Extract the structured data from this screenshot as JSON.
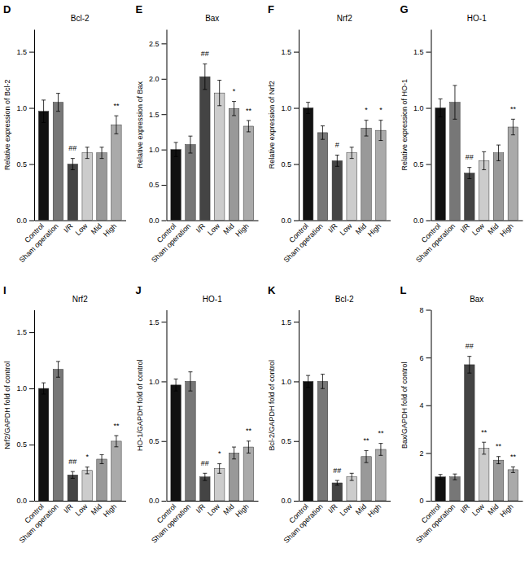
{
  "chart_data": [
    {
      "type": "bar",
      "title": "Bcl-2",
      "y_label": "Relative expression of Bcl-2",
      "categories": [
        "Control",
        "Sham operation",
        "I/R",
        "Low",
        "Mid",
        "High"
      ],
      "values": [
        0.97,
        1.05,
        0.5,
        0.6,
        0.6,
        0.85
      ],
      "errors": [
        0.1,
        0.08,
        0.05,
        0.05,
        0.05,
        0.08
      ],
      "colors": [
        "#111111",
        "#777777",
        "#444444",
        "#cccccc",
        "#999999",
        "#aaaaaa"
      ],
      "ylim": [
        0,
        1.7
      ],
      "yticks": [
        {
          "value": 0.0,
          "label": "0.0"
        },
        0.5,
        {
          "value": 1.0,
          "label": "1.0"
        },
        1.5
      ],
      "grid": false,
      "annotations": [
        {
          "text": "D"
        },
        {
          "text": "##",
          "x": "I/R"
        },
        {
          "text": "**",
          "x": "High"
        }
      ]
    },
    {
      "type": "bar",
      "title": "Bax",
      "y_label": "Relative expression of Bax",
      "categories": [
        "Control",
        "Sham operation",
        "I/R",
        "Low",
        "Mid",
        "High"
      ],
      "values": [
        1.0,
        1.07,
        2.03,
        1.8,
        1.58,
        1.33
      ],
      "errors": [
        0.1,
        0.12,
        0.18,
        0.18,
        0.1,
        0.08
      ],
      "colors": [
        "#111111",
        "#777777",
        "#444444",
        "#cccccc",
        "#999999",
        "#aaaaaa"
      ],
      "ylim": [
        0,
        2.7
      ],
      "yticks": [
        {
          "value": 0.0,
          "label": "0.0"
        },
        0.5,
        {
          "value": 1.0,
          "label": "1.0"
        },
        1.5,
        {
          "value": 2.0,
          "label": "2.0"
        },
        2.5
      ],
      "grid": false,
      "annotations": [
        {
          "text": "E"
        },
        {
          "text": "##",
          "x": "I/R"
        },
        {
          "text": "*",
          "x": "Mid"
        },
        {
          "text": "**",
          "x": "High"
        }
      ]
    },
    {
      "type": "bar",
      "title": "Nrf2",
      "y_label": "Relative expression of Nrf2",
      "categories": [
        "Control",
        "Sham operation",
        "I/R",
        "Low",
        "Mid",
        "High"
      ],
      "values": [
        1.0,
        0.78,
        0.53,
        0.6,
        0.82,
        0.8
      ],
      "errors": [
        0.05,
        0.06,
        0.05,
        0.05,
        0.07,
        0.09
      ],
      "colors": [
        "#111111",
        "#777777",
        "#444444",
        "#cccccc",
        "#999999",
        "#aaaaaa"
      ],
      "ylim": [
        0,
        1.7
      ],
      "yticks": [
        {
          "value": 0.0,
          "label": "0.0"
        },
        0.5,
        {
          "value": 1.0,
          "label": "1.0"
        },
        1.5
      ],
      "grid": false,
      "annotations": [
        {
          "text": "F"
        },
        {
          "text": "#",
          "x": "I/R"
        },
        {
          "text": "*",
          "x": "Mid"
        },
        {
          "text": "*",
          "x": "High"
        }
      ]
    },
    {
      "type": "bar",
      "title": "HO-1",
      "y_label": "Relative expression of HO-1",
      "categories": [
        "Control",
        "Sham operation",
        "I/R",
        "Low",
        "Mid",
        "High"
      ],
      "values": [
        1.0,
        1.05,
        0.42,
        0.53,
        0.6,
        0.83
      ],
      "errors": [
        0.08,
        0.15,
        0.05,
        0.08,
        0.07,
        0.07
      ],
      "colors": [
        "#111111",
        "#777777",
        "#444444",
        "#cccccc",
        "#999999",
        "#aaaaaa"
      ],
      "ylim": [
        0,
        1.7
      ],
      "yticks": [
        {
          "value": 0.0,
          "label": "0.0"
        },
        0.5,
        {
          "value": 1.0,
          "label": "1.0"
        },
        1.5
      ],
      "grid": false,
      "annotations": [
        {
          "text": "G"
        },
        {
          "text": "##",
          "x": "I/R"
        },
        {
          "text": "**",
          "x": "High"
        }
      ]
    },
    {
      "type": "bar",
      "title": "Nrf2",
      "y_label": "Nrf2/GAPDH fold of control",
      "categories": [
        "Control",
        "Sham operation",
        "I/R",
        "Low",
        "Mid",
        "High"
      ],
      "values": [
        1.0,
        1.17,
        0.23,
        0.27,
        0.37,
        0.53
      ],
      "errors": [
        0.05,
        0.07,
        0.03,
        0.03,
        0.04,
        0.05
      ],
      "colors": [
        "#111111",
        "#777777",
        "#444444",
        "#cccccc",
        "#999999",
        "#aaaaaa"
      ],
      "ylim": [
        0,
        1.7
      ],
      "yticks": [
        {
          "value": 0.0,
          "label": "0.0"
        },
        0.5,
        {
          "value": 1.0,
          "label": "1.0"
        },
        1.5
      ],
      "grid": false,
      "annotations": [
        {
          "text": "I"
        },
        {
          "text": "##",
          "x": "I/R"
        },
        {
          "text": "*",
          "x": "Low"
        },
        {
          "text": "**",
          "x": "High"
        }
      ]
    },
    {
      "type": "bar",
      "title": "HO-1",
      "y_label": "HO-1/GAPDH fold of control",
      "categories": [
        "Control",
        "Sham operation",
        "I/R",
        "Low",
        "Mid",
        "High"
      ],
      "values": [
        0.97,
        1.0,
        0.2,
        0.27,
        0.4,
        0.45
      ],
      "errors": [
        0.05,
        0.08,
        0.03,
        0.04,
        0.05,
        0.05
      ],
      "colors": [
        "#111111",
        "#777777",
        "#444444",
        "#cccccc",
        "#999999",
        "#aaaaaa"
      ],
      "ylim": [
        0,
        1.6
      ],
      "yticks": [
        {
          "value": 0.0,
          "label": "0.0"
        },
        0.5,
        {
          "value": 1.0,
          "label": "1.0"
        },
        1.5
      ],
      "grid": false,
      "annotations": [
        {
          "text": "J"
        },
        {
          "text": "##",
          "x": "I/R"
        },
        {
          "text": "*",
          "x": "Low"
        },
        {
          "text": "**",
          "x": "High"
        }
      ]
    },
    {
      "type": "bar",
      "title": "Bcl-2",
      "y_label": "Bcl-2/GAPDH fold of control",
      "categories": [
        "Control",
        "Sham operation",
        "I/R",
        "Low",
        "Mid",
        "High"
      ],
      "values": [
        1.0,
        1.0,
        0.15,
        0.2,
        0.37,
        0.43
      ],
      "errors": [
        0.05,
        0.06,
        0.02,
        0.03,
        0.05,
        0.05
      ],
      "colors": [
        "#111111",
        "#777777",
        "#444444",
        "#cccccc",
        "#999999",
        "#aaaaaa"
      ],
      "ylim": [
        0,
        1.6
      ],
      "yticks": [
        {
          "value": 0.0,
          "label": "0.0"
        },
        0.5,
        {
          "value": 1.0,
          "label": "1.0"
        },
        1.5
      ],
      "grid": false,
      "annotations": [
        {
          "text": "K"
        },
        {
          "text": "##",
          "x": "I/R"
        },
        {
          "text": "**",
          "x": "Mid"
        },
        {
          "text": "**",
          "x": "High"
        }
      ]
    },
    {
      "type": "bar",
      "title": "Bax",
      "y_label": "Bax/GAPDH fold of control",
      "categories": [
        "Control",
        "Sham operation",
        "I/R",
        "Low",
        "Mid",
        "High"
      ],
      "values": [
        1.0,
        1.0,
        5.7,
        2.2,
        1.7,
        1.3
      ],
      "errors": [
        0.1,
        0.12,
        0.35,
        0.25,
        0.15,
        0.12
      ],
      "colors": [
        "#111111",
        "#777777",
        "#444444",
        "#cccccc",
        "#999999",
        "#aaaaaa"
      ],
      "ylim": [
        0,
        8.0
      ],
      "yticks": [
        0,
        2,
        4,
        6,
        8
      ],
      "grid": false,
      "annotations": [
        {
          "text": "L"
        },
        {
          "text": "##",
          "x": "I/R"
        },
        {
          "text": "**",
          "x": "Low"
        },
        {
          "text": "**",
          "x": "Mid"
        },
        {
          "text": "**",
          "x": "High"
        }
      ]
    }
  ]
}
